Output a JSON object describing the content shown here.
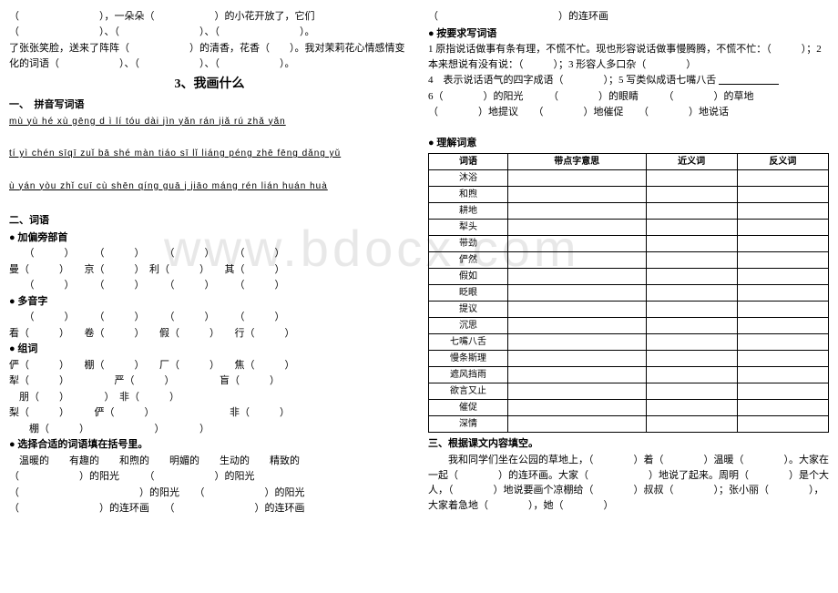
{
  "left": {
    "para1_a": "（　　　　　　　　），一朵朵（　　　　　　）的小花开放了，它们（　　　　　　　　）、（　　　　　　　　）、（　　　　　　　　）。",
    "para1_b": "了张张笑脸，送来了阵阵（　　　　　　）的清香，花香（　　）。我对茉莉花心情感情变化的词语（　　　　　　）、（　　　　　　）、（　　　　　　）。",
    "title": "3、我画什么",
    "sec1": "一、　拼音写词语",
    "pinyin1": "mù yù  hé xù  gēng d ì  lí tóu dài  jìn  yǎn  rán  jiǎ  rú zhǎ yǎn",
    "pinyin2": "tí yì chén sīqī zuǐ bā shé màn tiáo sī lǐ liáng péng zhē fēng  dǎng yǔ",
    "pinyin3": "ù  yán  yòu  zhǐ cuī  cù shēn  qíng guā j jiāo  máng  rén  lián  huán  huà",
    "sec2": "二、词语",
    "b1": "加偏旁部首",
    "row_rad1": "　　（　　　）　　　（　　　）　　　（　　　）　　　（　　　）",
    "row_rad2": "曼（　　　）　　京（　　　）　利（　　　）　　其（　　　）",
    "row_rad3": "　　（　　　）　　　（　　　）　　　（　　　）　　　（　　　）",
    "b2": "多音字",
    "row_dyz1": "　　（　　　）　　　（　　　）　　　（　　　）　　　（　　　）",
    "row_dyz2": "看（　　　）　　卷（　　　）　　假（　　　）　　行（　　　）",
    "b3": "组词",
    "zc1": "俨（　　　）　　棚（　　　）　　厂（　　　）　　焦（　　　）",
    "zc2": "犁（　　　）　　　　　严（　　　）　　　　　盲（　　　）",
    "zc3": "　朋（　　）　　　　）　非（　　　）",
    "zc4": "梨（　　　）　　　俨（　　　）　　　　　　　　非（　　　）",
    "zc5": "　　棚（　　　）　　　　　　　）　　　　）",
    "b4": "选择合适的词语填在括号里。",
    "opt1": "　温暖的　　有趣的　　和煦的　　明媚的　　生动的　　精致的",
    "fill1": "（　　　　　　）的阳光　　　（　　　　　　）的阳光",
    "fill2": "（　　　　　　　　　　　　）的阳光　　（　　　　　　）的阳光",
    "fill3": "（　　　　　　　　）的连环画　　（　　　　　　　　）的连环画"
  },
  "right": {
    "top": "（　　　　　　　　　　　　）的连环画",
    "b5": "按要求写词语",
    "req1": "1 原指说话做事有条有理，不慌不忙。现也形容说话做事慢腾腾，不慌不忙：（　　　）；2 本来想说有没有说：（　　　）；3 形容人多口杂（　　　　）",
    "req2": "4　表示说话语气的四字成语（　　　　）；5 写类似成语七嘴八舌",
    "req3": "6（　　　　）的阳光　　　（　　　　）的眼睛　　　（　　　　）的草地",
    "req4": "（　　　　）地提议　　（　　　　）地催促　　（　　　　）地说话",
    "b6": "理解词意",
    "table": {
      "headers": [
        "词语",
        "带点字意思",
        "近义词",
        "反义词"
      ],
      "rows": [
        "沐浴",
        "和煦",
        "耕地",
        "犁头",
        "带劲",
        "俨然",
        "假如",
        "眨眼",
        "提议",
        "沉思",
        "七嘴八舌",
        "慢条斯理",
        "遮风挡雨",
        "欲言又止",
        "催促",
        "深情"
      ]
    },
    "sec3": "三、根据课文内容填空。",
    "p1": "　　我和同学们坐在公园的草地上，（　　　　）着（　　　　）温暖（　　　　）。大家在一起（　　　　）的连环画。大家（　　　　　　）地说了起来。周明（　　　　）是个大人，（　　　　）地说要画个凉棚给（　　　　）叔叔（　　　　）；张小丽（　　　　），大家着急地（　　　　），她（　　　　）"
  }
}
